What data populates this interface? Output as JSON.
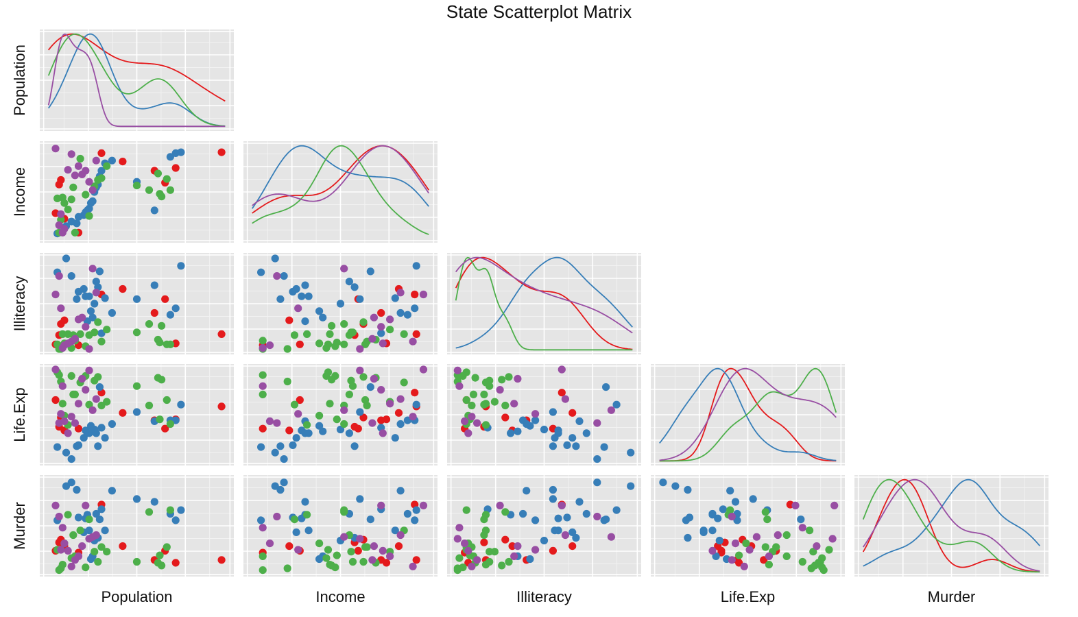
{
  "colors": {
    "panel_bg": "#e5e5e5",
    "grid_major": "#ffffff",
    "grid_minor": "#f2f2f2",
    "groups": [
      "#e41a1c",
      "#377eb8",
      "#4daf4a",
      "#984ea3"
    ]
  },
  "chart_data": {
    "type": "scatter",
    "title": "State Scatterplot Matrix",
    "variables": [
      "Population",
      "Income",
      "Illiteracy",
      "Life.Exp",
      "Murder"
    ],
    "layout": "lower-triangle",
    "diagonal": "density",
    "grid": true,
    "series_colors": [
      "#e41a1c",
      "#377eb8",
      "#4daf4a",
      "#984ea3"
    ],
    "series": [
      {
        "color": "#e41a1c",
        "points": [
          {
            "Population": 0.04,
            "Income": 0.27,
            "Illiteracy": 0.06,
            "Life.Exp": 0.66,
            "Murder": 0.23
          },
          {
            "Population": 0.06,
            "Income": 0.58,
            "Illiteracy": 0.16,
            "Life.Exp": 0.37,
            "Murder": 0.32
          },
          {
            "Population": 0.07,
            "Income": 0.63,
            "Illiteracy": 0.28,
            "Life.Exp": 0.47,
            "Murder": 0.35
          },
          {
            "Population": 0.09,
            "Income": 0.21,
            "Illiteracy": 0.32,
            "Life.Exp": 0.33,
            "Murder": 0.28
          },
          {
            "Population": 0.17,
            "Income": 0.06,
            "Illiteracy": 0.05,
            "Life.Exp": 0.35,
            "Murder": 0.21
          },
          {
            "Population": 0.3,
            "Income": 0.92,
            "Illiteracy": 0.6,
            "Life.Exp": 0.74,
            "Murder": 0.73
          },
          {
            "Population": 0.42,
            "Income": 0.83,
            "Illiteracy": 0.66,
            "Life.Exp": 0.52,
            "Murder": 0.28
          },
          {
            "Population": 0.6,
            "Income": 0.73,
            "Illiteracy": 0.4,
            "Life.Exp": 0.44,
            "Murder": 0.13
          },
          {
            "Population": 0.66,
            "Income": 0.6,
            "Illiteracy": 0.55,
            "Life.Exp": 0.35,
            "Murder": 0.23
          },
          {
            "Population": 0.72,
            "Income": 0.76,
            "Illiteracy": 0.07,
            "Life.Exp": 0.45,
            "Murder": 0.1
          },
          {
            "Population": 0.98,
            "Income": 0.93,
            "Illiteracy": 0.17,
            "Life.Exp": 0.59,
            "Murder": 0.13
          }
        ]
      },
      {
        "color": "#377eb8",
        "points": [
          {
            "Population": 0.05,
            "Income": 0.05,
            "Illiteracy": 0.84,
            "Life.Exp": 0.15,
            "Murder": 0.56
          },
          {
            "Population": 0.1,
            "Income": 0.13,
            "Illiteracy": 0.99,
            "Life.Exp": 0.09,
            "Murder": 0.93
          },
          {
            "Population": 0.16,
            "Income": 0.16,
            "Illiteracy": 0.55,
            "Life.Exp": 0.16,
            "Murder": 0.89
          },
          {
            "Population": 0.13,
            "Income": 0.18,
            "Illiteracy": 0.8,
            "Life.Exp": 0.02,
            "Murder": 0.97
          },
          {
            "Population": 0.17,
            "Income": 0.23,
            "Illiteracy": 0.63,
            "Life.Exp": 0.17,
            "Murder": 0.59
          },
          {
            "Population": 0.2,
            "Income": 0.25,
            "Illiteracy": 0.66,
            "Life.Exp": 0.25,
            "Murder": 0.43
          },
          {
            "Population": 0.21,
            "Income": 0.28,
            "Illiteracy": 0.58,
            "Life.Exp": 0.33,
            "Murder": 0.58
          },
          {
            "Population": 0.22,
            "Income": 0.3,
            "Illiteracy": 0.31,
            "Life.Exp": 0.3,
            "Murder": 0.62
          },
          {
            "Population": 0.23,
            "Income": 0.32,
            "Illiteracy": 0.58,
            "Life.Exp": 0.3,
            "Murder": 0.45
          },
          {
            "Population": 0.24,
            "Income": 0.38,
            "Illiteracy": 0.42,
            "Life.Exp": 0.38,
            "Murder": 0.14
          },
          {
            "Population": 0.25,
            "Income": 0.4,
            "Illiteracy": 0.35,
            "Life.Exp": 0.32,
            "Murder": 0.17
          },
          {
            "Population": 0.26,
            "Income": 0.5,
            "Illiteracy": 0.5,
            "Life.Exp": 0.34,
            "Murder": 0.34
          },
          {
            "Population": 0.27,
            "Income": 0.55,
            "Illiteracy": 0.74,
            "Life.Exp": 0.3,
            "Murder": 0.63
          },
          {
            "Population": 0.28,
            "Income": 0.58,
            "Illiteracy": 0.68,
            "Life.Exp": 0.16,
            "Murder": 0.37
          },
          {
            "Population": 0.29,
            "Income": 0.67,
            "Illiteracy": 0.85,
            "Life.Exp": 0.8,
            "Murder": 0.57
          },
          {
            "Population": 0.3,
            "Income": 0.73,
            "Illiteracy": 0.18,
            "Life.Exp": 0.36,
            "Murder": 0.68
          },
          {
            "Population": 0.32,
            "Income": 0.81,
            "Illiteracy": 0.56,
            "Life.Exp": 0.25,
            "Murder": 0.45
          },
          {
            "Population": 0.36,
            "Income": 0.84,
            "Illiteracy": 0.4,
            "Life.Exp": 0.4,
            "Murder": 0.88
          },
          {
            "Population": 0.5,
            "Income": 0.61,
            "Illiteracy": 0.55,
            "Life.Exp": 0.53,
            "Murder": 0.79
          },
          {
            "Population": 0.6,
            "Income": 0.3,
            "Illiteracy": 0.7,
            "Life.Exp": 0.43,
            "Murder": 0.76
          },
          {
            "Population": 0.69,
            "Income": 0.88,
            "Illiteracy": 0.38,
            "Life.Exp": 0.44,
            "Murder": 0.63
          },
          {
            "Population": 0.72,
            "Income": 0.92,
            "Illiteracy": 0.45,
            "Life.Exp": 0.44,
            "Murder": 0.56
          },
          {
            "Population": 0.75,
            "Income": 0.93,
            "Illiteracy": 0.91,
            "Life.Exp": 0.61,
            "Murder": 0.67
          }
        ]
      },
      {
        "color": "#4daf4a",
        "points": [
          {
            "Population": 0.05,
            "Income": 0.43,
            "Illiteracy": 0.06,
            "Life.Exp": 0.96,
            "Murder": 0.24
          },
          {
            "Population": 0.06,
            "Income": 0.06,
            "Illiteracy": 0.01,
            "Life.Exp": 0.93,
            "Murder": 0.02
          },
          {
            "Population": 0.07,
            "Income": 0.2,
            "Illiteracy": 0.01,
            "Life.Exp": 0.86,
            "Murder": 0.04
          },
          {
            "Population": 0.08,
            "Income": 0.44,
            "Illiteracy": 0.17,
            "Life.Exp": 0.62,
            "Murder": 0.08
          },
          {
            "Population": 0.09,
            "Income": 0.38,
            "Illiteracy": 0.07,
            "Life.Exp": 0.49,
            "Murder": 0.31
          },
          {
            "Population": 0.11,
            "Income": 0.31,
            "Illiteracy": 0.17,
            "Life.Exp": 0.39,
            "Murder": 0.62
          },
          {
            "Population": 0.13,
            "Income": 0.42,
            "Illiteracy": 0.02,
            "Life.Exp": 0.92,
            "Murder": 0.15
          },
          {
            "Population": 0.14,
            "Income": 0.55,
            "Illiteracy": 0.16,
            "Life.Exp": 0.72,
            "Murder": 0.4
          },
          {
            "Population": 0.15,
            "Income": 0.06,
            "Illiteracy": 0.1,
            "Life.Exp": 0.72,
            "Murder": 0.17
          },
          {
            "Population": 0.18,
            "Income": 0.86,
            "Illiteracy": 0.17,
            "Life.Exp": 0.85,
            "Murder": 0.45
          },
          {
            "Population": 0.21,
            "Income": 0.47,
            "Illiteracy": 0.04,
            "Life.Exp": 0.92,
            "Murder": 0.05
          },
          {
            "Population": 0.23,
            "Income": 0.24,
            "Illiteracy": 0.16,
            "Life.Exp": 0.61,
            "Murder": 0.57
          },
          {
            "Population": 0.26,
            "Income": 0.56,
            "Illiteracy": 0.19,
            "Life.Exp": 0.87,
            "Murder": 0.22
          },
          {
            "Population": 0.28,
            "Income": 0.63,
            "Illiteracy": 0.3,
            "Life.Exp": 0.91,
            "Murder": 0.11
          },
          {
            "Population": 0.3,
            "Income": 0.65,
            "Illiteracy": 0.09,
            "Life.Exp": 0.6,
            "Murder": 0.27
          },
          {
            "Population": 0.33,
            "Income": 0.78,
            "Illiteracy": 0.22,
            "Life.Exp": 0.64,
            "Murder": 0.22
          },
          {
            "Population": 0.5,
            "Income": 0.57,
            "Illiteracy": 0.19,
            "Life.Exp": 0.81,
            "Murder": 0.11
          },
          {
            "Population": 0.57,
            "Income": 0.52,
            "Illiteracy": 0.28,
            "Life.Exp": 0.6,
            "Murder": 0.65
          },
          {
            "Population": 0.62,
            "Income": 0.7,
            "Illiteracy": 0.11,
            "Life.Exp": 0.9,
            "Murder": 0.1
          },
          {
            "Population": 0.64,
            "Income": 0.45,
            "Illiteracy": 0.26,
            "Life.Exp": 0.88,
            "Murder": 0.07
          },
          {
            "Population": 0.69,
            "Income": 0.52,
            "Illiteracy": 0.06,
            "Life.Exp": 0.4,
            "Murder": 0.67
          },
          {
            "Population": 0.67,
            "Income": 0.64,
            "Illiteracy": 0.06,
            "Life.Exp": 0.66,
            "Murder": 0.27
          },
          {
            "Population": 0.63,
            "Income": 0.48,
            "Illiteracy": 0.08,
            "Life.Exp": 0.45,
            "Murder": 0.18
          }
        ]
      },
      {
        "color": "#984ea3",
        "points": [
          {
            "Population": 0.04,
            "Income": 0.97,
            "Illiteracy": 0.6,
            "Life.Exp": 0.99,
            "Murder": 0.72
          },
          {
            "Population": 0.06,
            "Income": 0.14,
            "Illiteracy": 0.8,
            "Life.Exp": 0.41,
            "Murder": 0.6
          },
          {
            "Population": 0.07,
            "Income": 0.26,
            "Illiteracy": 0.45,
            "Life.Exp": 0.51,
            "Murder": 0.24
          },
          {
            "Population": 0.08,
            "Income": 0.06,
            "Illiteracy": 0.02,
            "Life.Exp": 0.81,
            "Murder": 0.48
          },
          {
            "Population": 0.09,
            "Income": 0.1,
            "Illiteracy": 0.05,
            "Life.Exp": 0.43,
            "Murder": 0.31
          },
          {
            "Population": 0.11,
            "Income": 0.74,
            "Illiteracy": 0.07,
            "Life.Exp": 0.3,
            "Murder": 0.23
          },
          {
            "Population": 0.13,
            "Income": 0.91,
            "Illiteracy": 0.09,
            "Life.Exp": 0.48,
            "Murder": 0.06
          },
          {
            "Population": 0.15,
            "Income": 0.68,
            "Illiteracy": 0.12,
            "Life.Exp": 0.41,
            "Murder": 0.13
          },
          {
            "Population": 0.17,
            "Income": 0.78,
            "Illiteracy": 0.33,
            "Life.Exp": 0.62,
            "Murder": 0.17
          },
          {
            "Population": 0.19,
            "Income": 0.69,
            "Illiteracy": 0.35,
            "Life.Exp": 0.89,
            "Murder": 0.28
          },
          {
            "Population": 0.21,
            "Income": 0.73,
            "Illiteracy": 0.25,
            "Life.Exp": 0.77,
            "Murder": 0.72
          },
          {
            "Population": 0.23,
            "Income": 0.61,
            "Illiteracy": 0.01,
            "Life.Exp": 0.98,
            "Murder": 0.36
          },
          {
            "Population": 0.25,
            "Income": 0.52,
            "Illiteracy": 0.88,
            "Life.Exp": 0.55,
            "Murder": 0.38
          },
          {
            "Population": 0.27,
            "Income": 0.84,
            "Illiteracy": 0.62,
            "Life.Exp": 0.67,
            "Murder": 0.4
          }
        ]
      }
    ]
  }
}
